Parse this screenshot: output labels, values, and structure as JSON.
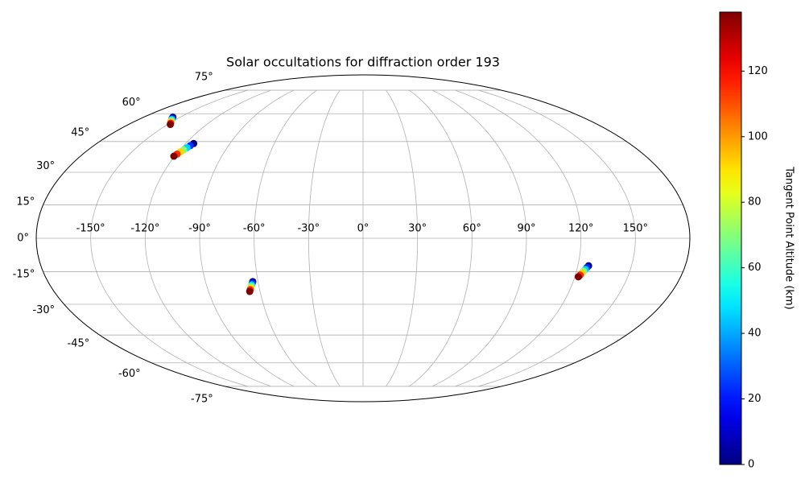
{
  "chart_data": {
    "type": "scatter",
    "projection": "mollweide",
    "title": "Solar occultations for diffraction order 193",
    "colorbar_label": "Tangent Point Altitude (km)",
    "cmap": "jet",
    "grid": true,
    "lon": [
      -156,
      -154.7,
      -153.3,
      -152,
      -150.7,
      -149.3,
      -148,
      -114.5,
      -115.5,
      -116.5,
      -117.5,
      -118.5,
      -119.5,
      -120.5,
      -63,
      -63.5,
      -64,
      -64.5,
      -65,
      -65.5,
      -66,
      126,
      125.3,
      124.7,
      124,
      123.3,
      122.7,
      122
    ],
    "lat": [
      58,
      57.3,
      56.7,
      56,
      55.3,
      54.7,
      54,
      44,
      42.9,
      41.9,
      40.8,
      39.8,
      38.7,
      37.7,
      -19.5,
      -20.2,
      -21,
      -21.7,
      -22.5,
      -23.2,
      -24,
      -12.3,
      -13.1,
      -14,
      -14.8,
      -15.6,
      -16.5,
      -17.3
    ],
    "altitude": [
      0,
      23,
      46,
      69,
      92,
      115,
      138,
      0,
      23,
      46,
      69,
      92,
      115,
      138,
      0,
      23,
      46,
      69,
      92,
      115,
      138,
      0,
      23,
      46,
      69,
      92,
      115,
      138
    ],
    "clim": [
      0,
      138
    ],
    "cticks": [
      0,
      20,
      40,
      60,
      80,
      100,
      120
    ],
    "xlim": [
      -180,
      180
    ],
    "ylim": [
      -90,
      90
    ],
    "xticks": [
      {
        "value": -150,
        "label": "-150°"
      },
      {
        "value": -120,
        "label": "-120°"
      },
      {
        "value": -90,
        "label": "-90°"
      },
      {
        "value": -60,
        "label": "-60°"
      },
      {
        "value": -30,
        "label": "-30°"
      },
      {
        "value": 0,
        "label": "0°"
      },
      {
        "value": 30,
        "label": "30°"
      },
      {
        "value": 60,
        "label": "60°"
      },
      {
        "value": 90,
        "label": "90°"
      },
      {
        "value": 120,
        "label": "120°"
      },
      {
        "value": 150,
        "label": "150°"
      }
    ],
    "yticks": [
      {
        "value": -75,
        "label": "-75°"
      },
      {
        "value": -60,
        "label": "-60°"
      },
      {
        "value": -45,
        "label": "-45°"
      },
      {
        "value": -30,
        "label": "-30°"
      },
      {
        "value": -15,
        "label": "-15°"
      },
      {
        "value": 0,
        "label": "0°"
      },
      {
        "value": 15,
        "label": "15°"
      },
      {
        "value": 30,
        "label": "30°"
      },
      {
        "value": 45,
        "label": "45°"
      },
      {
        "value": 60,
        "label": "60°"
      },
      {
        "value": 75,
        "label": "75°"
      }
    ]
  }
}
